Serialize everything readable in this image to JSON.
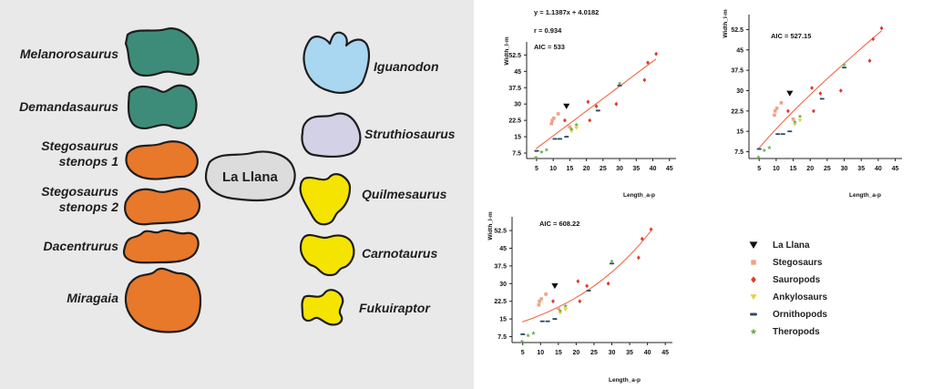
{
  "shapes_panel": {
    "center_label": "La Llana",
    "left_specimens": [
      {
        "name": "Melanorosaurus",
        "group": "Sauropods"
      },
      {
        "name": "Demandasaurus",
        "group": "Sauropods"
      },
      {
        "name": "Stegosaurus stenops 1",
        "group": "Stegosaurs"
      },
      {
        "name": "Stegosaurus stenops 2",
        "group": "Stegosaurs"
      },
      {
        "name": "Dacentrurus",
        "group": "Stegosaurs"
      },
      {
        "name": "Miragaia",
        "group": "Stegosaurs"
      }
    ],
    "right_specimens": [
      {
        "name": "Iguanodon",
        "group": "Ornithopods"
      },
      {
        "name": "Struthiosaurus",
        "group": "Ankylosaurs"
      },
      {
        "name": "Quilmesaurus",
        "group": "Theropods"
      },
      {
        "name": "Carnotaurus",
        "group": "Theropods"
      },
      {
        "name": "Fukuiraptor",
        "group": "Theropods"
      }
    ],
    "colors": {
      "sauropod": "#3d8c79",
      "stegosaur": "#e8782a",
      "ornithopod": "#a9d6f0",
      "ankylosaur": "#d2d1e6",
      "theropod": "#f5e400",
      "la_llana": "#dcdcdc"
    }
  },
  "chart_data": [
    {
      "type": "scatter",
      "id": "linear",
      "xlabel": "Length_a-p",
      "ylabel": "Width_l-m",
      "xticks": [
        5,
        10,
        15,
        20,
        25,
        30,
        35,
        40,
        45
      ],
      "yticks": [
        7.5,
        15,
        22.5,
        30,
        37.5,
        45,
        52.5
      ],
      "xlim": [
        2,
        47
      ],
      "ylim": [
        5,
        56
      ],
      "annotations": [
        "y = 1.1387x + 4.0182",
        "r = 0.934",
        "AIC = 533"
      ],
      "fit": {
        "kind": "linear",
        "slope": 1.1387,
        "intercept": 4.0182,
        "x_range": [
          4.8,
          41
        ]
      }
    },
    {
      "type": "scatter",
      "id": "power",
      "xlabel": "Length_a-p",
      "ylabel": "Width_l-m",
      "xticks": [
        5,
        10,
        15,
        20,
        25,
        30,
        35,
        40,
        45
      ],
      "yticks": [
        7.5,
        15,
        22.5,
        30,
        37.5,
        45,
        52.5
      ],
      "xlim": [
        2,
        47
      ],
      "ylim": [
        5,
        56
      ],
      "annotations": [
        "AIC = 527.15"
      ],
      "fit": {
        "kind": "power",
        "x_range": [
          4.8,
          41
        ]
      }
    },
    {
      "type": "scatter",
      "id": "exponential",
      "xlabel": "Length_a-p",
      "ylabel": "Width_l-m",
      "xticks": [
        5,
        10,
        15,
        20,
        25,
        30,
        35,
        40,
        45
      ],
      "yticks": [
        7.5,
        15,
        22.5,
        30,
        37.5,
        45,
        52.5
      ],
      "xlim": [
        2,
        47
      ],
      "ylim": [
        5,
        56
      ],
      "annotations": [
        "AIC = 608.22"
      ],
      "fit": {
        "kind": "exponential",
        "x_range": [
          4.8,
          41
        ]
      }
    }
  ],
  "series": [
    {
      "name": "La Llana",
      "marker": "triangle",
      "color": "#111111",
      "points": [
        [
          14,
          29
        ]
      ]
    },
    {
      "name": "Stegosaurs",
      "marker": "square",
      "color": "#f2a184",
      "points": [
        [
          9.5,
          21
        ],
        [
          9.7,
          22.5
        ],
        [
          10.2,
          23.5
        ],
        [
          11.5,
          25.5
        ],
        [
          15,
          19.5
        ]
      ]
    },
    {
      "name": "Sauropods",
      "marker": "diamond",
      "color": "#e0392a",
      "points": [
        [
          13.5,
          22.5
        ],
        [
          20.5,
          31
        ],
        [
          21,
          22.5
        ],
        [
          23,
          29
        ],
        [
          29,
          30
        ],
        [
          37.5,
          41
        ],
        [
          38.5,
          49
        ],
        [
          41,
          53
        ]
      ]
    },
    {
      "name": "Ankylosaurs",
      "marker": "triangle",
      "color": "#e8cf4d",
      "points": [
        [
          15.5,
          17.5
        ],
        [
          17,
          19
        ]
      ]
    },
    {
      "name": "Ornithopods",
      "marker": "dash",
      "color": "#2f4d6a",
      "points": [
        [
          5,
          8.5
        ],
        [
          10.5,
          14
        ],
        [
          12,
          14
        ],
        [
          14,
          15
        ],
        [
          23.5,
          27
        ],
        [
          30,
          38.5
        ]
      ]
    },
    {
      "name": "Theropods",
      "marker": "star",
      "color": "#6ab04c",
      "points": [
        [
          4.8,
          5.5
        ],
        [
          6.5,
          8
        ],
        [
          8,
          9
        ],
        [
          15.5,
          18.5
        ],
        [
          17,
          20.5
        ],
        [
          30,
          39.5
        ]
      ]
    }
  ]
}
